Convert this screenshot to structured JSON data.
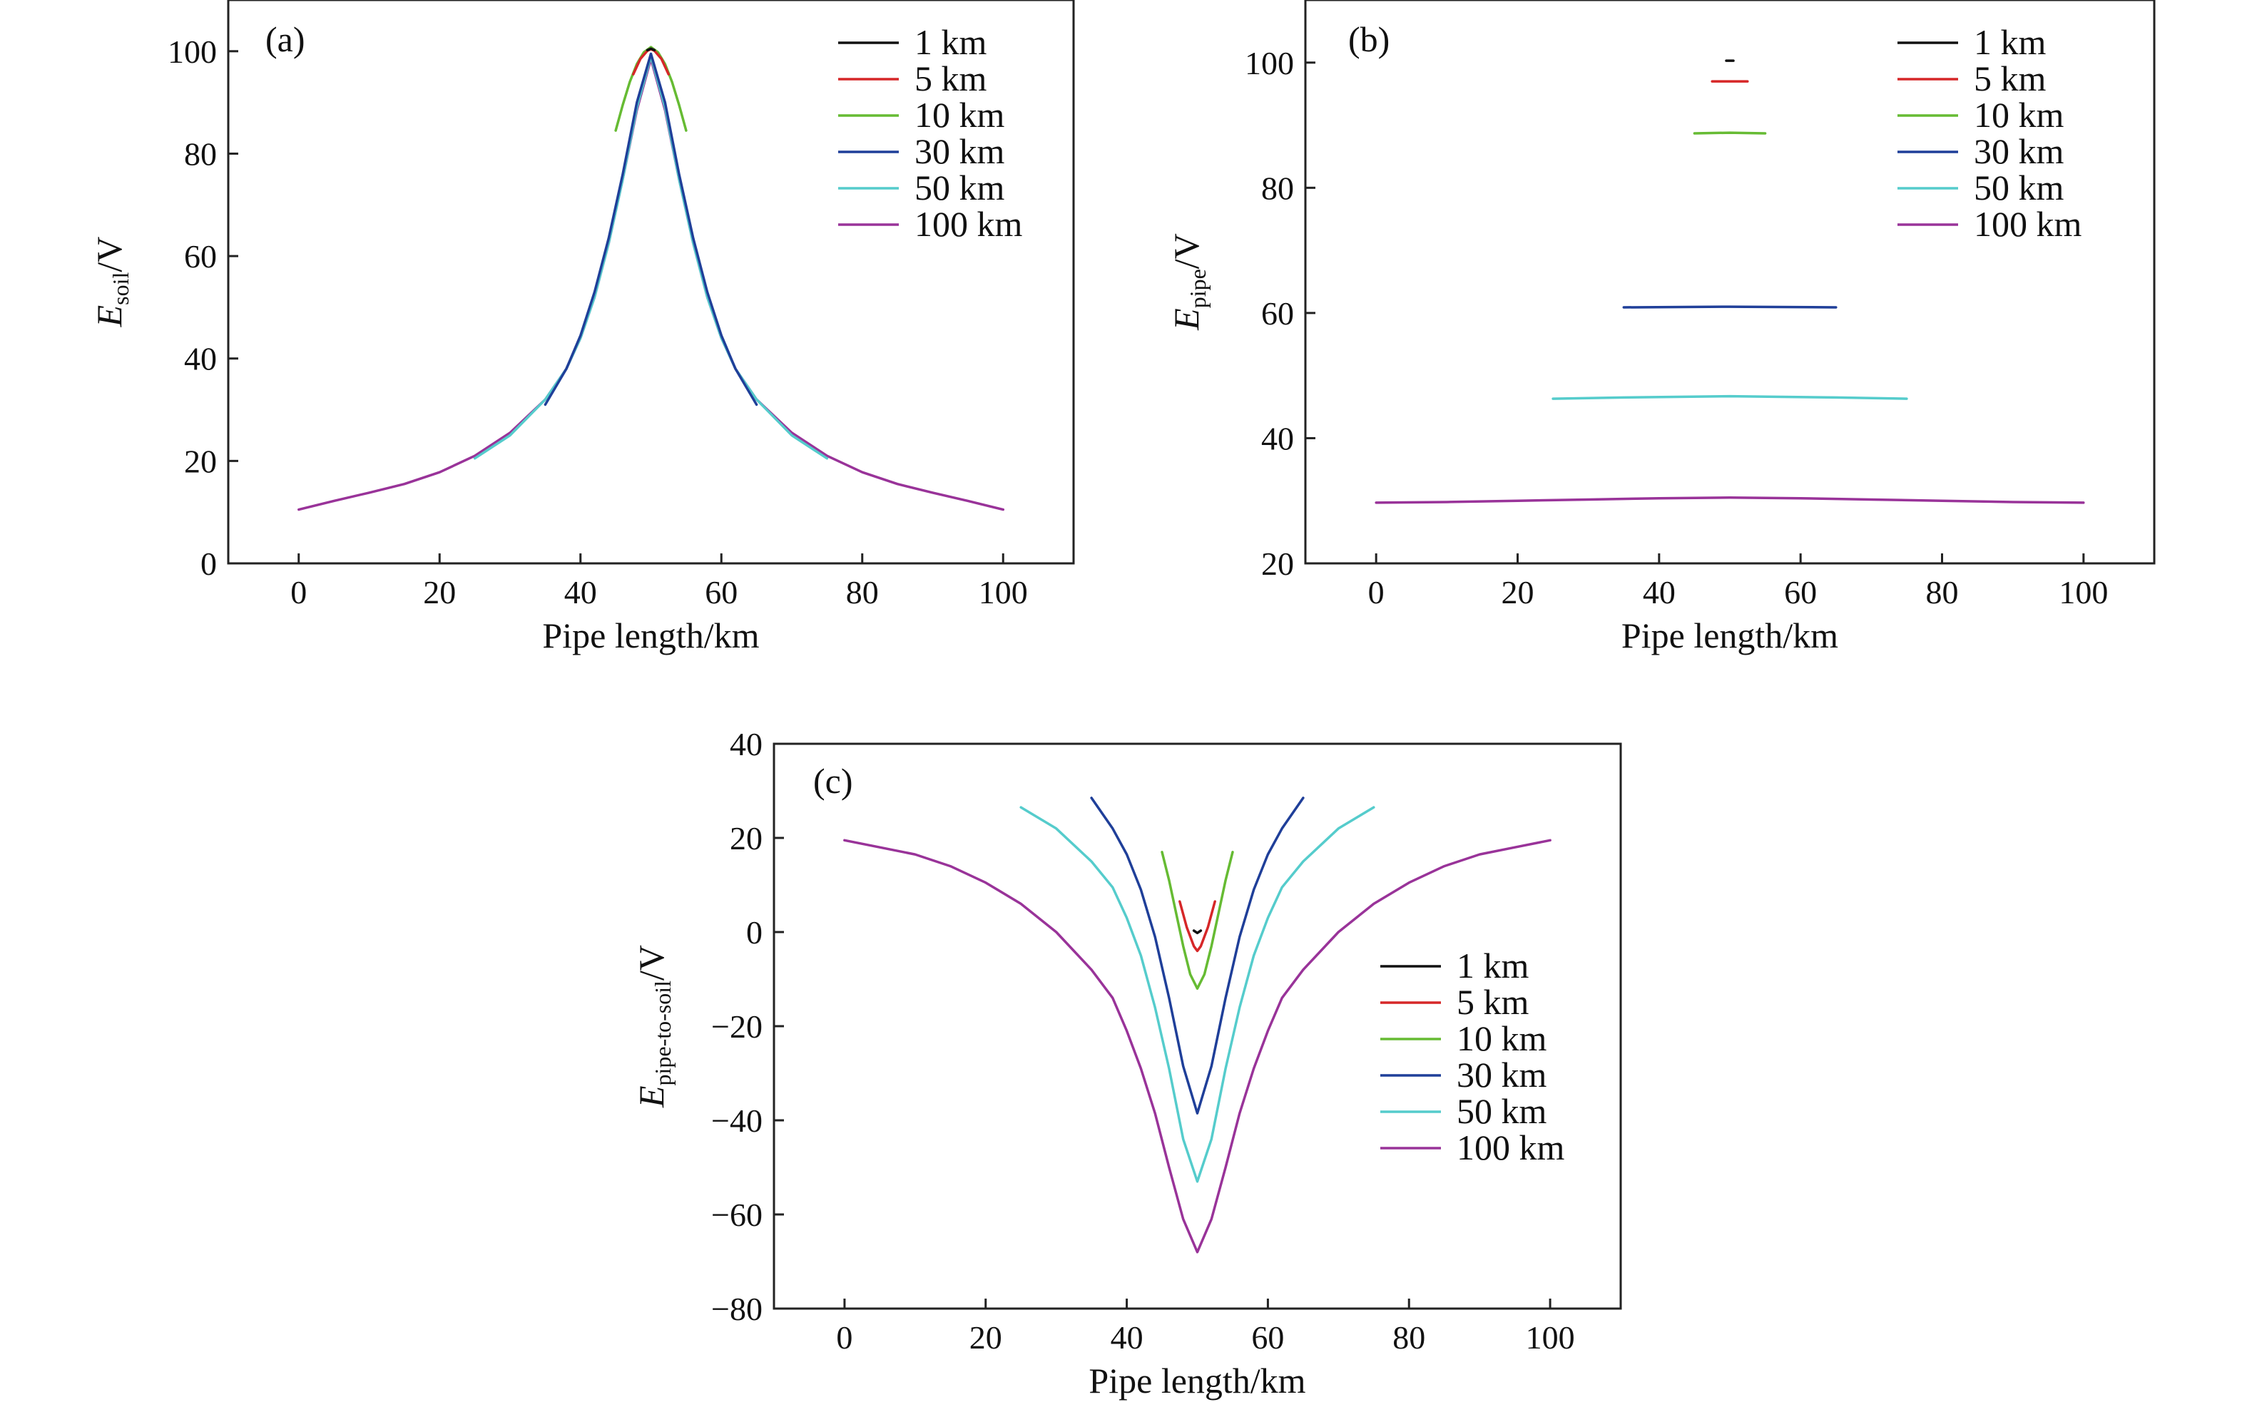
{
  "chart_data": [
    {
      "id": "a",
      "type": "line",
      "panel_label": "(a)",
      "xlabel": "Pipe length/km",
      "ylabel_main": "E",
      "ylabel_sub": "soil",
      "ylabel_unit": "/V",
      "xlim": [
        -10,
        110
      ],
      "ylim": [
        0,
        110
      ],
      "xticks": [
        0,
        20,
        40,
        60,
        80,
        100
      ],
      "yticks": [
        0,
        20,
        40,
        60,
        80,
        100
      ],
      "legend_position": "top-right",
      "series": [
        {
          "name": "1 km",
          "color": "#111111",
          "x": [
            49.5,
            50,
            50.5
          ],
          "y": [
            100.2,
            100.5,
            100.2
          ]
        },
        {
          "name": "5 km",
          "color": "#d62728",
          "x": [
            47.5,
            48.5,
            49.5,
            50,
            50.5,
            51.5,
            52.5
          ],
          "y": [
            95.5,
            98.5,
            100.1,
            100.4,
            100.1,
            98.5,
            95.5
          ]
        },
        {
          "name": "10 km",
          "color": "#66bb33",
          "x": [
            45,
            46,
            47,
            48,
            49,
            50,
            51,
            52,
            53,
            54,
            55
          ],
          "y": [
            84.5,
            89.5,
            94,
            97.5,
            99.8,
            100.8,
            99.8,
            97.5,
            94,
            89.5,
            84.5
          ]
        },
        {
          "name": "30 km",
          "color": "#1f3f99",
          "x": [
            35,
            38,
            40,
            42,
            44,
            46,
            48,
            50,
            52,
            54,
            56,
            58,
            60,
            62,
            65
          ],
          "y": [
            31,
            38,
            44.5,
            53,
            63.5,
            76,
            90,
            99.5,
            90,
            76,
            63.5,
            53,
            44.5,
            38,
            31
          ]
        },
        {
          "name": "50 km",
          "color": "#55cccc",
          "x": [
            25,
            30,
            35,
            38,
            40,
            42,
            44,
            46,
            48,
            50,
            52,
            54,
            56,
            58,
            60,
            62,
            65,
            70,
            75
          ],
          "y": [
            20.5,
            25,
            32,
            38,
            44,
            52,
            62.5,
            75,
            89,
            99,
            89,
            75,
            62.5,
            52,
            44,
            38,
            32,
            25,
            20.5
          ]
        },
        {
          "name": "100 km",
          "color": "#993399",
          "x": [
            0,
            5,
            10,
            15,
            20,
            25,
            30,
            35,
            38,
            40,
            42,
            44,
            46,
            48,
            50,
            52,
            54,
            56,
            58,
            60,
            62,
            65,
            70,
            75,
            80,
            85,
            90,
            95,
            100
          ],
          "y": [
            10.5,
            12.2,
            13.8,
            15.5,
            17.8,
            21,
            25.5,
            32,
            38,
            44,
            52,
            62.5,
            75,
            88.5,
            98.5,
            88.5,
            75,
            62.5,
            52,
            44,
            38,
            32,
            25.5,
            21,
            17.8,
            15.5,
            13.8,
            12.2,
            10.5
          ]
        }
      ]
    },
    {
      "id": "b",
      "type": "line",
      "panel_label": "(b)",
      "xlabel": "Pipe length/km",
      "ylabel_main": "E",
      "ylabel_sub": "pipe",
      "ylabel_unit": "/V",
      "xlim": [
        -10,
        110
      ],
      "ylim": [
        20,
        110
      ],
      "xticks": [
        0,
        20,
        40,
        60,
        80,
        100
      ],
      "yticks": [
        20,
        40,
        60,
        80,
        100
      ],
      "legend_position": "top-right",
      "series": [
        {
          "name": "1 km",
          "color": "#111111",
          "x": [
            49.5,
            50.5
          ],
          "y": [
            100.3,
            100.3
          ]
        },
        {
          "name": "5 km",
          "color": "#d62728",
          "x": [
            47.5,
            52.5
          ],
          "y": [
            97.0,
            97.0
          ]
        },
        {
          "name": "10 km",
          "color": "#66bb33",
          "x": [
            45,
            50,
            55
          ],
          "y": [
            88.7,
            88.8,
            88.7
          ]
        },
        {
          "name": "30 km",
          "color": "#1f3f99",
          "x": [
            35,
            50,
            65
          ],
          "y": [
            60.9,
            61.0,
            60.9
          ]
        },
        {
          "name": "50 km",
          "color": "#55cccc",
          "x": [
            25,
            35,
            50,
            65,
            75
          ],
          "y": [
            46.3,
            46.5,
            46.7,
            46.5,
            46.3
          ]
        },
        {
          "name": "100 km",
          "color": "#993399",
          "x": [
            0,
            10,
            20,
            30,
            40,
            50,
            60,
            70,
            80,
            90,
            100
          ],
          "y": [
            29.7,
            29.8,
            30.0,
            30.2,
            30.4,
            30.5,
            30.4,
            30.2,
            30.0,
            29.8,
            29.7
          ]
        }
      ]
    },
    {
      "id": "c",
      "type": "line",
      "panel_label": "(c)",
      "xlabel": "Pipe length/km",
      "ylabel_main": "E",
      "ylabel_sub": "pipe-to-soil",
      "ylabel_unit": "/V",
      "xlim": [
        -10,
        110
      ],
      "ylim": [
        -80,
        40
      ],
      "xticks": [
        0,
        20,
        40,
        60,
        80,
        100
      ],
      "yticks": [
        -80,
        -60,
        -40,
        -20,
        0,
        20,
        40
      ],
      "legend_position": "center-right",
      "series": [
        {
          "name": "1 km",
          "color": "#111111",
          "x": [
            49.5,
            50,
            50.5
          ],
          "y": [
            0.3,
            -0.2,
            0.3
          ]
        },
        {
          "name": "5 km",
          "color": "#d62728",
          "x": [
            47.5,
            48.5,
            49.5,
            50,
            50.5,
            51.5,
            52.5
          ],
          "y": [
            6.5,
            1,
            -3,
            -4,
            -3,
            1,
            6.5
          ]
        },
        {
          "name": "10 km",
          "color": "#66bb33",
          "x": [
            45,
            46,
            47,
            48,
            49,
            50,
            51,
            52,
            53,
            54,
            55
          ],
          "y": [
            17,
            11,
            4,
            -3,
            -9,
            -12,
            -9,
            -3,
            4,
            11,
            17
          ]
        },
        {
          "name": "30 km",
          "color": "#1f3f99",
          "x": [
            35,
            38,
            40,
            42,
            44,
            46,
            48,
            50,
            52,
            54,
            56,
            58,
            60,
            62,
            65
          ],
          "y": [
            28.5,
            22,
            16.5,
            9,
            -1,
            -14,
            -28.5,
            -38.5,
            -28.5,
            -14,
            -1,
            9,
            16.5,
            22,
            28.5
          ]
        },
        {
          "name": "50 km",
          "color": "#55cccc",
          "x": [
            25,
            30,
            35,
            38,
            40,
            42,
            44,
            46,
            48,
            50,
            52,
            54,
            56,
            58,
            60,
            62,
            65,
            70,
            75
          ],
          "y": [
            26.5,
            22,
            15,
            9.5,
            3,
            -5,
            -16,
            -29,
            -44,
            -53,
            -44,
            -29,
            -16,
            -5,
            3,
            9.5,
            15,
            22,
            26.5
          ]
        },
        {
          "name": "100 km",
          "color": "#993399",
          "x": [
            0,
            5,
            10,
            15,
            20,
            25,
            30,
            35,
            38,
            40,
            42,
            44,
            46,
            48,
            50,
            52,
            54,
            56,
            58,
            60,
            62,
            65,
            70,
            75,
            80,
            85,
            90,
            95,
            100
          ],
          "y": [
            19.5,
            18,
            16.5,
            14,
            10.5,
            6,
            0,
            -8,
            -14,
            -21,
            -29,
            -38.5,
            -50,
            -61,
            -68,
            -61,
            -50,
            -38.5,
            -29,
            -21,
            -14,
            -8,
            0,
            6,
            10.5,
            14,
            16.5,
            18,
            19.5
          ]
        }
      ]
    }
  ]
}
